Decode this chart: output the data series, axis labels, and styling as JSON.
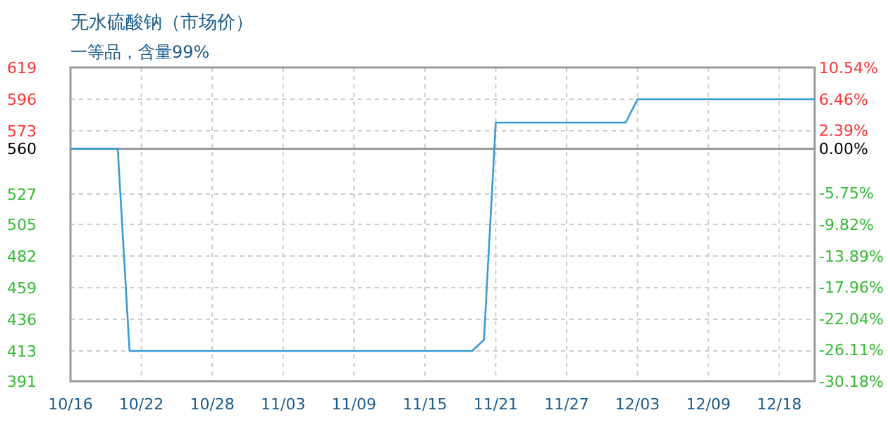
{
  "chart_data": {
    "type": "line",
    "title": "无水硫酸钠（市场价）",
    "subtitle": "一等品，含量99%",
    "categories": [
      "10/16",
      null,
      null,
      null,
      null,
      null,
      "10/22",
      null,
      null,
      null,
      null,
      null,
      "10/28",
      null,
      null,
      null,
      null,
      null,
      "11/03",
      null,
      null,
      null,
      null,
      null,
      "11/09",
      null,
      null,
      null,
      null,
      null,
      "11/15",
      null,
      null,
      null,
      null,
      null,
      "11/21",
      null,
      null,
      null,
      null,
      null,
      "11/27",
      null,
      null,
      null,
      null,
      null,
      "12/03",
      null,
      null,
      null,
      null,
      null,
      "12/09",
      null,
      null,
      null,
      null,
      null,
      "12/18",
      null,
      null,
      null
    ],
    "series": [
      {
        "color": "#3a9ad9",
        "values": [
          560,
          560,
          560,
          560,
          560,
          413,
          413,
          413,
          413,
          413,
          413,
          413,
          413,
          413,
          413,
          413,
          413,
          413,
          413,
          413,
          413,
          413,
          413,
          413,
          413,
          413,
          413,
          413,
          413,
          413,
          413,
          413,
          413,
          413,
          413,
          421,
          579,
          579,
          579,
          579,
          579,
          579,
          579,
          579,
          579,
          579,
          579,
          579,
          596,
          596,
          596,
          596,
          596,
          596,
          596,
          596,
          596,
          596,
          596,
          596,
          596,
          596,
          596,
          596
        ]
      }
    ],
    "ylim": [
      391,
      619
    ],
    "yticks": [
      391,
      413,
      436,
      459,
      482,
      505,
      527,
      560,
      573,
      596,
      619
    ],
    "y2lim": [
      -30.18,
      10.54
    ],
    "y2ticks": [
      {
        "value": -30.18,
        "label": "-30.18%"
      },
      {
        "value": -26.11,
        "label": "-26.11%"
      },
      {
        "value": -22.04,
        "label": "-22.04%"
      },
      {
        "value": -17.96,
        "label": "-17.96%"
      },
      {
        "value": -13.89,
        "label": "-13.89%"
      },
      {
        "value": -9.82,
        "label": "-9.82%"
      },
      {
        "value": -5.75,
        "label": "-5.75%"
      },
      {
        "value": 0,
        "label": "0.00%"
      },
      {
        "value": 2.39,
        "label": "2.39%"
      },
      {
        "value": 6.46,
        "label": "6.46%"
      },
      {
        "value": 10.54,
        "label": "10.54%"
      }
    ],
    "ref_lines": [
      {
        "axis": "y",
        "value": 560,
        "color": "#999999"
      }
    ],
    "grid": true,
    "line_style": "solid"
  }
}
